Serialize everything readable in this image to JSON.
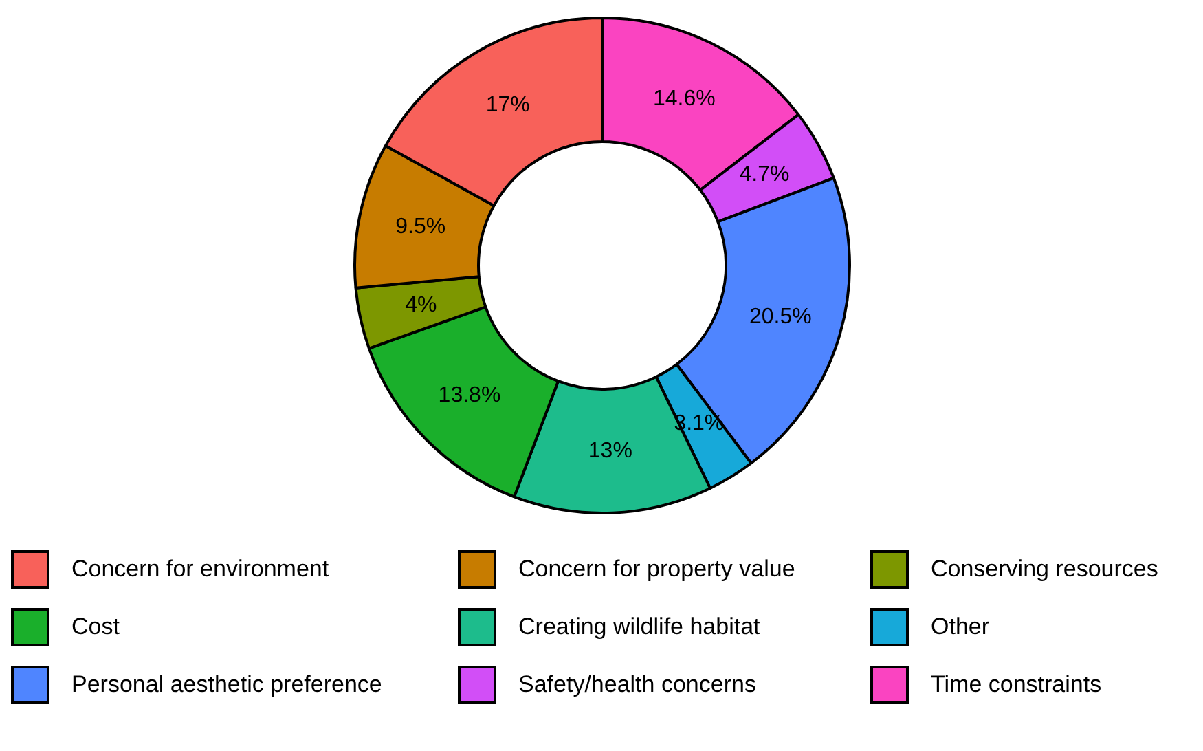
{
  "chart_data": {
    "type": "donut",
    "categories": [
      "Time constraints",
      "Safety/health concerns",
      "Personal aesthetic preference",
      "Other",
      "Creating wildlife habitat",
      "Cost",
      "Conserving resources",
      "Concern for property value",
      "Concern for environment"
    ],
    "values": [
      14.6,
      4.7,
      20.5,
      3.1,
      13,
      13.8,
      4,
      9.5,
      17
    ],
    "value_labels": [
      "14.6%",
      "4.7%",
      "20.5%",
      "3.1%",
      "13%",
      "13.8%",
      "4%",
      "9.5%",
      "17%"
    ],
    "colors": [
      "#fa44c1",
      "#d24ef7",
      "#4f85ff",
      "#17a9d9",
      "#1dbc8c",
      "#1aaf2b",
      "#7d9700",
      "#c77c00",
      "#f8615a"
    ],
    "legend": "bottom"
  }
}
